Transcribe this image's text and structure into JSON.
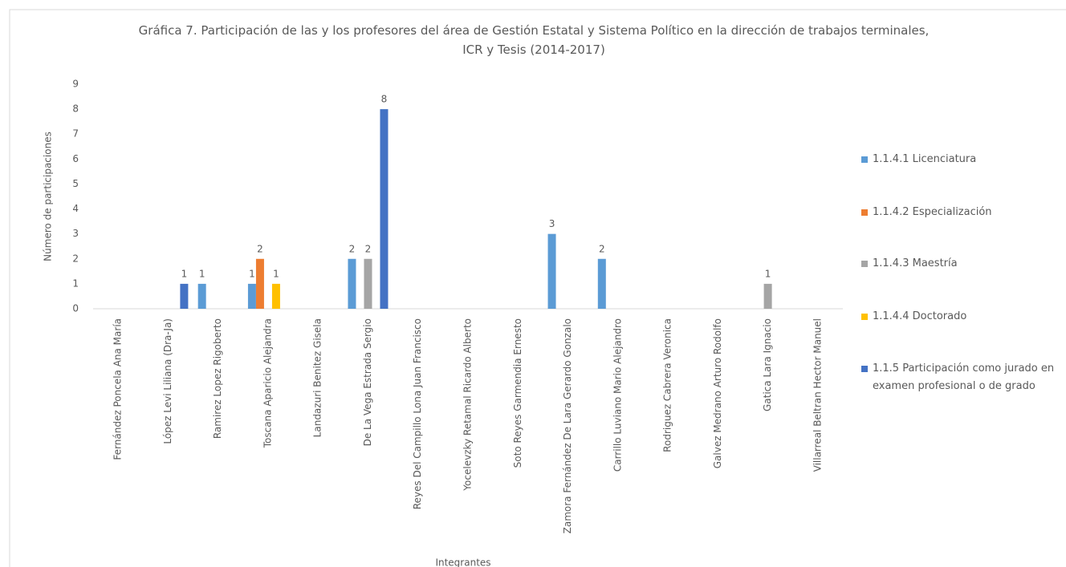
{
  "chart_data": {
    "type": "bar",
    "title": "Gráfica 7. Participación de las y los  profesores del área de Gestión Estatal y Sistema Político en la dirección de trabajos terminales, ICR y Tesis (2014-2017)",
    "y_label": "Número de participaciones",
    "x_label": "Integrantes",
    "categories": [
      "Fernández Poncela Ana María",
      "López Levi Liliana (Dra-Ja)",
      "Ramirez Lopez Rigoberto",
      "Toscana Aparicio Alejandra",
      "Landazuri Benitez Gisela",
      "De La Vega Estrada Sergio",
      "Reyes Del Campillo Lona Juan Francisco",
      "Yocelevzky Retamal Ricardo Alberto",
      "Soto Reyes Garmendia Ernesto",
      "Zamora Fernández De Lara Gerardo Gonzalo",
      "Carrillo Luviano Mario Alejandro",
      "Rodriguez Cabrera Veronica",
      "Galvez Medrano Arturo Rodolfo",
      "Gatica Lara Ignacio",
      "Villarreal Beltran Hector Manuel"
    ],
    "series": [
      {
        "name": "1.1.4.1 Licenciatura",
        "color": "#5b9bd5",
        "values": [
          null,
          null,
          1,
          1,
          null,
          2,
          null,
          null,
          null,
          3,
          2,
          null,
          null,
          null,
          null
        ]
      },
      {
        "name": "1.1.4.2 Especialización",
        "color": "#ed7d31",
        "values": [
          null,
          null,
          null,
          2,
          null,
          null,
          null,
          null,
          null,
          null,
          null,
          null,
          null,
          null,
          null
        ]
      },
      {
        "name": "1.1.4.3 Maestría",
        "color": "#a5a5a5",
        "values": [
          null,
          null,
          null,
          null,
          null,
          2,
          null,
          null,
          null,
          null,
          null,
          null,
          null,
          1,
          null
        ]
      },
      {
        "name": "1.1.4.4 Doctorado",
        "color": "#ffc000",
        "values": [
          null,
          null,
          null,
          1,
          null,
          null,
          null,
          null,
          null,
          null,
          null,
          null,
          null,
          null,
          null
        ]
      },
      {
        "name": "1.1.5 Participación como jurado en examen profesional o de grado",
        "color": "#4472c4",
        "values": [
          null,
          1,
          null,
          null,
          null,
          8,
          null,
          null,
          null,
          null,
          null,
          null,
          null,
          null,
          null
        ]
      }
    ],
    "ylim": [
      0,
      9
    ],
    "yticks": [
      0,
      1,
      2,
      3,
      4,
      5,
      6,
      7,
      8,
      9
    ],
    "grid": false,
    "legend": "right"
  }
}
